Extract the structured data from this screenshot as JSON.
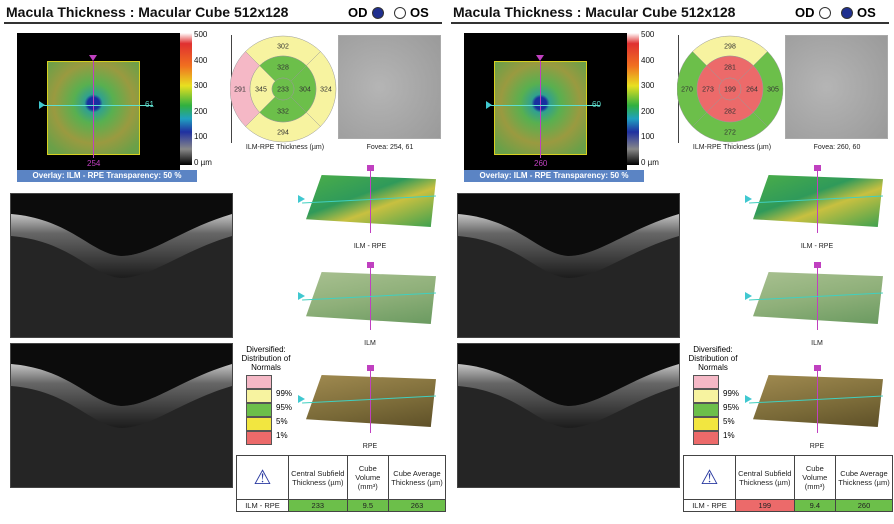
{
  "panels": [
    {
      "title": "Macula Thickness : Macular Cube 512x128",
      "od_label": "OD",
      "os_label": "OS",
      "selected": "OD",
      "colorbar_ticks": [
        "500",
        "400",
        "300",
        "200",
        "100",
        "0 µm"
      ],
      "heatmap": {
        "h_line_label": "61",
        "v_line_label": "254"
      },
      "overlay_label": "Overlay: ILM - RPE  Transparency: 50 %",
      "etdrs": {
        "center": "233",
        "inner": {
          "superior": "328",
          "nasal": "304",
          "inferior": "332",
          "temporal": "345"
        },
        "outer": {
          "superior": "302",
          "nasal": "324",
          "inferior": "294",
          "temporal": "291"
        },
        "colors": {
          "center": "#6cbf4a",
          "inner_superior": "#6cbf4a",
          "inner_nasal": "#6cbf4a",
          "inner_inferior": "#6cbf4a",
          "inner_temporal": "#f7f3a0",
          "outer_superior": "#f7f3a0",
          "outer_nasal": "#f7f3a0",
          "outer_inferior": "#f7f3a0",
          "outer_temporal": "#f5b8c6"
        },
        "label": "ILM-RPE Thickness (µm)"
      },
      "fovea_label": "Fovea: 254, 61",
      "maps": [
        "ILM - RPE",
        "ILM",
        "RPE"
      ],
      "legend": {
        "title": "Diversified: Distribution of Normals",
        "marks": [
          "99%",
          "95%",
          "5%",
          "1%"
        ]
      },
      "table": {
        "headers": [
          "Central Subfield Thickness (µm)",
          "Cube Volume (mm³)",
          "Cube Average Thickness (µm)"
        ],
        "row_label": "ILM - RPE",
        "values": [
          "233",
          "9.5",
          "263"
        ],
        "value_colors": [
          "#6cbf4a",
          "#6cbf4a",
          "#6cbf4a"
        ]
      }
    },
    {
      "title": "Macula Thickness : Macular Cube 512x128",
      "od_label": "OD",
      "os_label": "OS",
      "selected": "OS",
      "colorbar_ticks": [
        "500",
        "400",
        "300",
        "200",
        "100",
        "0 µm"
      ],
      "heatmap": {
        "h_line_label": "60",
        "v_line_label": "260"
      },
      "overlay_label": "Overlay: ILM - RPE  Transparency: 50 %",
      "etdrs": {
        "center": "199",
        "inner": {
          "superior": "281",
          "nasal": "264",
          "inferior": "282",
          "temporal": "273"
        },
        "outer": {
          "superior": "298",
          "nasal": "305",
          "inferior": "272",
          "temporal": "270"
        },
        "colors": {
          "center": "#ec6a6a",
          "inner_superior": "#ec6a6a",
          "inner_nasal": "#ec6a6a",
          "inner_inferior": "#ec6a6a",
          "inner_temporal": "#ec6a6a",
          "outer_superior": "#f7f3a0",
          "outer_nasal": "#6cbf4a",
          "outer_inferior": "#6cbf4a",
          "outer_temporal": "#6cbf4a"
        },
        "label": "ILM-RPE Thickness (µm)"
      },
      "fovea_label": "Fovea: 260, 60",
      "maps": [
        "ILM - RPE",
        "ILM",
        "RPE"
      ],
      "legend": {
        "title": "Diversified: Distribution of Normals",
        "marks": [
          "99%",
          "95%",
          "5%",
          "1%"
        ]
      },
      "table": {
        "headers": [
          "Central Subfield Thickness (µm)",
          "Cube Volume (mm³)",
          "Cube Average Thickness (µm)"
        ],
        "row_label": "ILM - RPE",
        "values": [
          "199",
          "9.4",
          "260"
        ],
        "value_colors": [
          "#ec6a6a",
          "#6cbf4a",
          "#6cbf4a"
        ]
      }
    }
  ],
  "legend_colors": [
    "#f5b8c6",
    "#f7f3a0",
    "#6cbf4a",
    "#f2e640",
    "#ec6a6a"
  ],
  "accent": "#1f2f8f"
}
